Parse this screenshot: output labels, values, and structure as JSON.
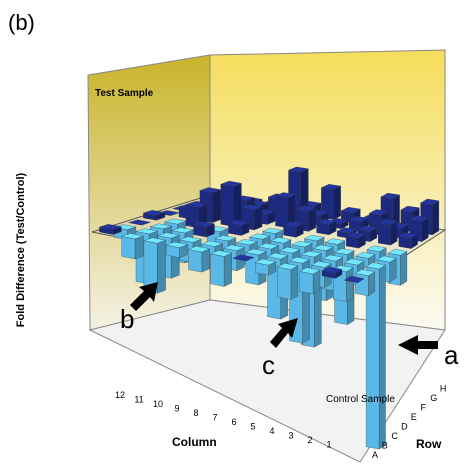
{
  "chart_data": {
    "type": "bar3d",
    "title": "(b)",
    "wall_label": "Test Sample",
    "floor_label": "Control Sample",
    "y_label": "Fold Difference (Test/Control)",
    "x_label": "Column",
    "z_label": "Row",
    "columns": [
      "12",
      "11",
      "10",
      "9",
      "8",
      "7",
      "6",
      "5",
      "4",
      "3",
      "2",
      "1"
    ],
    "rows": [
      "A",
      "B",
      "C",
      "D",
      "E",
      "F",
      "G",
      "H"
    ],
    "values": [
      [
        0.5,
        -2,
        -5,
        -1,
        -2,
        -3,
        0,
        -1,
        -3,
        -2,
        0.5,
        0
      ],
      [
        -1,
        -5,
        -4,
        -2,
        -1,
        -2,
        -3,
        -6,
        -8,
        -2,
        -3,
        -2
      ],
      [
        0,
        -2,
        -3,
        1,
        -1,
        -2,
        -1,
        -4,
        -9,
        -3,
        -2,
        -18
      ],
      [
        0.5,
        -1,
        2,
        -2,
        1,
        -1,
        -2,
        -2,
        -5,
        -7,
        -1,
        -2
      ],
      [
        0,
        1,
        3,
        4,
        2,
        -1,
        1,
        -1,
        -2,
        1,
        -1,
        -3
      ],
      [
        0,
        0.5,
        1,
        2,
        1,
        3,
        2,
        1,
        0.5,
        1,
        2,
        1
      ],
      [
        0,
        0.5,
        0.5,
        1,
        2,
        5,
        1,
        0.5,
        1,
        2,
        1,
        2
      ],
      [
        0,
        0,
        0.5,
        0.5,
        1,
        1,
        3,
        1,
        0.5,
        3,
        2,
        3
      ]
    ],
    "colors": {
      "up": "#1c2a80",
      "down": "#5ab8e6"
    },
    "annotations": [
      "a",
      "b",
      "c"
    ]
  }
}
